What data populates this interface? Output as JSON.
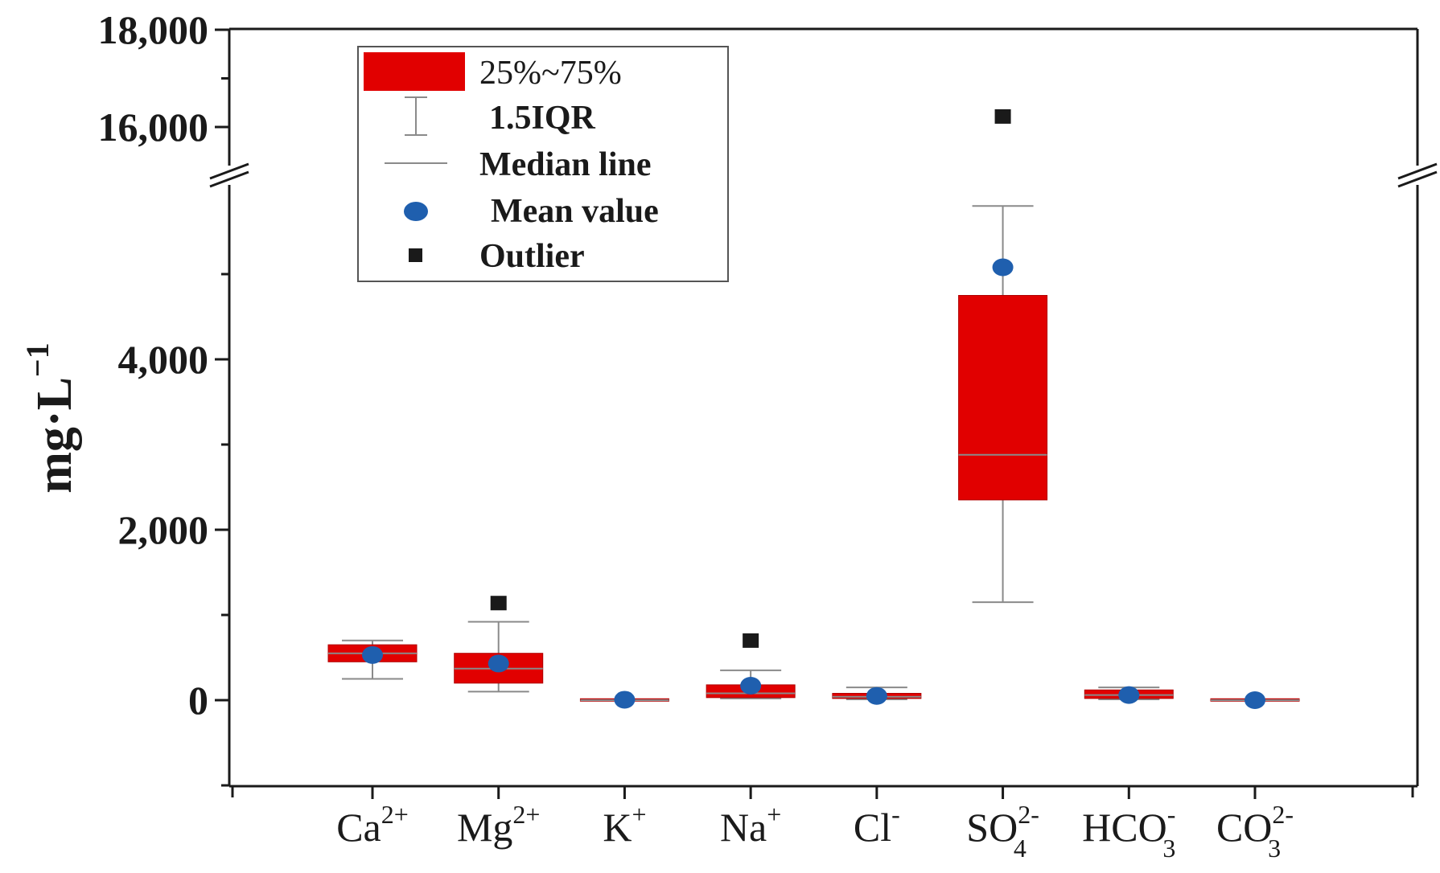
{
  "chart_data": {
    "type": "box",
    "ylabel": {
      "base": "mg·L",
      "sup": "−1"
    },
    "y_ticks": [
      {
        "value": 0,
        "label": "0"
      },
      {
        "value": 2000,
        "label": "2,000"
      },
      {
        "value": 4000,
        "label": "4,000"
      },
      {
        "value": 16000,
        "label": "16,000"
      },
      {
        "value": 18000,
        "label": "18,000"
      }
    ],
    "ylim": [
      -1000,
      18000
    ],
    "axis_break": [
      5800,
      15500
    ],
    "categories": [
      {
        "base": "Ca",
        "sup": "2+",
        "sub": ""
      },
      {
        "base": "Mg",
        "sup": "2+",
        "sub": ""
      },
      {
        "base": "K",
        "sup": "+",
        "sub": ""
      },
      {
        "base": "Na",
        "sup": "+",
        "sub": ""
      },
      {
        "base": "Cl",
        "sup": "-",
        "sub": ""
      },
      {
        "base": "SO",
        "sup": "2-",
        "sub": "4"
      },
      {
        "base": "HCO",
        "sup": "-",
        "sub": "3"
      },
      {
        "base": "CO",
        "sup": "2-",
        "sub": "3"
      }
    ],
    "boxes": [
      {
        "whisker_low": 250,
        "q1": 450,
        "median": 550,
        "q3": 650,
        "whisker_high": 700,
        "mean": 530,
        "outliers": []
      },
      {
        "whisker_low": 100,
        "q1": 200,
        "median": 370,
        "q3": 550,
        "whisker_high": 920,
        "mean": 430,
        "outliers": [
          1130
        ]
      },
      {
        "whisker_low": 0,
        "q1": 0,
        "median": 0,
        "q3": 5,
        "whisker_high": 10,
        "mean": 5,
        "outliers": []
      },
      {
        "whisker_low": 20,
        "q1": 30,
        "median": 80,
        "q3": 180,
        "whisker_high": 350,
        "mean": 170,
        "outliers": [
          690
        ]
      },
      {
        "whisker_low": 10,
        "q1": 20,
        "median": 40,
        "q3": 80,
        "whisker_high": 150,
        "mean": 50,
        "outliers": []
      },
      {
        "whisker_low": 1150,
        "q1": 2350,
        "median": 2880,
        "q3": 4750,
        "whisker_high": 5800,
        "mean": 5080,
        "outliers": [
          16200
        ]
      },
      {
        "whisker_low": 10,
        "q1": 20,
        "median": 60,
        "q3": 120,
        "whisker_high": 150,
        "mean": 60,
        "outliers": []
      },
      {
        "whisker_low": 0,
        "q1": 0,
        "median": 0,
        "q3": 5,
        "whisker_high": 10,
        "mean": 0,
        "outliers": []
      }
    ],
    "legend": {
      "placement": "top-left",
      "items": [
        {
          "key": "box",
          "label": "25%~75%"
        },
        {
          "key": "whisker",
          "label": "1.5IQR"
        },
        {
          "key": "median",
          "label": "Median line"
        },
        {
          "key": "mean",
          "label": "Mean value"
        },
        {
          "key": "outlier",
          "label": "Outlier"
        }
      ]
    },
    "colors": {
      "box_fill": "#e10000",
      "mean_marker": "#1f5fae",
      "outlier_marker": "#1a1a1a",
      "whisker": "#8a8a8a",
      "median": "#8a8a8a",
      "axis": "#1a1a1a"
    },
    "grid": false
  }
}
